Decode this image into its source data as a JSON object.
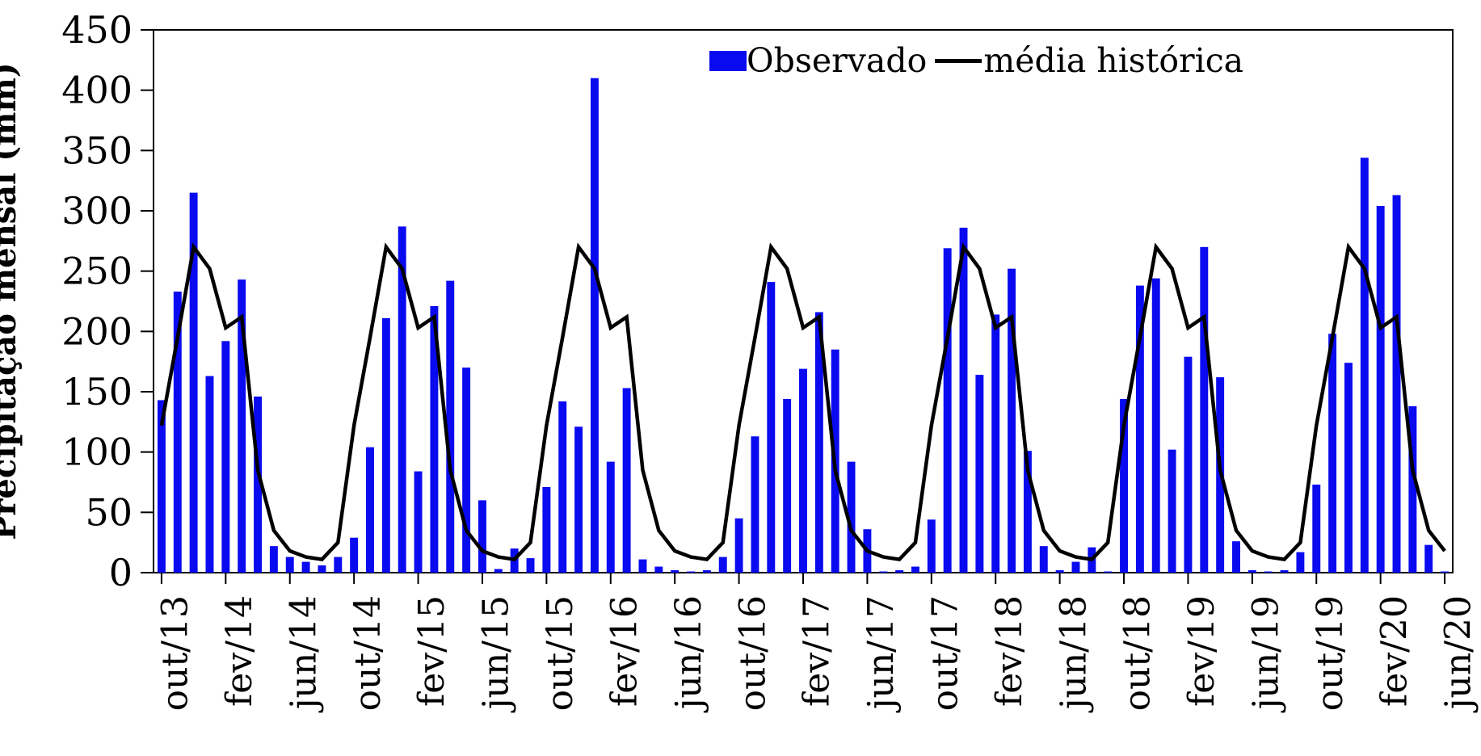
{
  "chart_data": {
    "type": "bar+line",
    "title": "",
    "ylabel": "Precipitação mensal (mm)",
    "xlabel": "",
    "ylim": [
      0,
      450
    ],
    "yticks": [
      0,
      50,
      100,
      150,
      200,
      250,
      300,
      350,
      400,
      450
    ],
    "grid": false,
    "legend_position": "top-right-inside",
    "x_tick_every": 4,
    "categories": [
      "out/13",
      "nov/13",
      "dez/13",
      "jan/14",
      "fev/14",
      "mar/14",
      "abr/14",
      "mai/14",
      "jun/14",
      "jul/14",
      "ago/14",
      "set/14",
      "out/14",
      "nov/14",
      "dez/14",
      "jan/15",
      "fev/15",
      "mar/15",
      "abr/15",
      "mai/15",
      "jun/15",
      "jul/15",
      "ago/15",
      "set/15",
      "out/15",
      "nov/15",
      "dez/15",
      "jan/16",
      "fev/16",
      "mar/16",
      "abr/16",
      "mai/16",
      "jun/16",
      "jul/16",
      "ago/16",
      "set/16",
      "out/16",
      "nov/16",
      "dez/16",
      "jan/17",
      "fev/17",
      "mar/17",
      "abr/17",
      "mai/17",
      "jun/17",
      "jul/17",
      "ago/17",
      "set/17",
      "out/17",
      "nov/17",
      "dez/17",
      "jan/18",
      "fev/18",
      "mar/18",
      "abr/18",
      "mai/18",
      "jun/18",
      "jul/18",
      "ago/18",
      "set/18",
      "out/18",
      "nov/18",
      "dez/18",
      "jan/19",
      "fev/19",
      "mar/19",
      "abr/19",
      "mai/19",
      "jun/19",
      "jul/19",
      "ago/19",
      "set/19",
      "out/19",
      "nov/19",
      "dez/19",
      "jan/20",
      "fev/20",
      "mar/20",
      "abr/20",
      "mai/20",
      "jun/20"
    ],
    "visible_x_tick_labels": [
      "out/13",
      "fev/14",
      "jun/14",
      "out/14",
      "fev/15",
      "jun/15",
      "out/15",
      "fev/16",
      "jun/16",
      "out/16",
      "fev/17",
      "jun/17",
      "out/17",
      "fev/18",
      "jun/18",
      "out/18",
      "fev/19",
      "jun/19",
      "out/19",
      "fev/20",
      "jun/20"
    ],
    "series": [
      {
        "name": "Observado",
        "type": "bar",
        "color": "#0a0af0",
        "values": [
          143,
          233,
          315,
          163,
          192,
          243,
          146,
          22,
          13,
          9,
          6,
          13,
          29,
          104,
          211,
          287,
          84,
          221,
          242,
          170,
          60,
          3,
          20,
          12,
          71,
          142,
          121,
          410,
          92,
          153,
          11,
          5,
          2,
          1,
          2,
          13,
          45,
          113,
          241,
          144,
          169,
          216,
          185,
          92,
          36,
          1,
          2,
          5,
          44,
          269,
          286,
          164,
          214,
          252,
          101,
          22,
          2,
          9,
          21,
          1,
          144,
          238,
          244,
          102,
          179,
          270,
          162,
          26,
          2,
          1,
          2,
          17,
          73,
          198,
          174,
          344,
          304,
          313,
          138,
          23,
          1
        ]
      },
      {
        "name": "média histórica",
        "type": "line",
        "color": "#000000",
        "monthly_means": {
          "jan": 252,
          "fev": 203,
          "mar": 212,
          "abr": 85,
          "mai": 35,
          "jun": 18,
          "jul": 13,
          "ago": 11,
          "set": 25,
          "out": 122,
          "nov": 195,
          "dez": 270
        },
        "values": [
          122,
          195,
          270,
          252,
          203,
          212,
          85,
          35,
          18,
          13,
          11,
          25,
          122,
          195,
          270,
          252,
          203,
          212,
          85,
          35,
          18,
          13,
          11,
          25,
          122,
          195,
          270,
          252,
          203,
          212,
          85,
          35,
          18,
          13,
          11,
          25,
          122,
          195,
          270,
          252,
          203,
          212,
          85,
          35,
          18,
          13,
          11,
          25,
          122,
          195,
          270,
          252,
          203,
          212,
          85,
          35,
          18,
          13,
          11,
          25,
          122,
          195,
          270,
          252,
          203,
          212,
          85,
          35,
          18,
          13,
          11,
          25,
          122,
          195,
          270,
          252,
          203,
          212,
          85,
          35,
          18
        ]
      }
    ]
  },
  "legend": {
    "observado_label": "Observado",
    "media_historica_label": "média histórica"
  }
}
